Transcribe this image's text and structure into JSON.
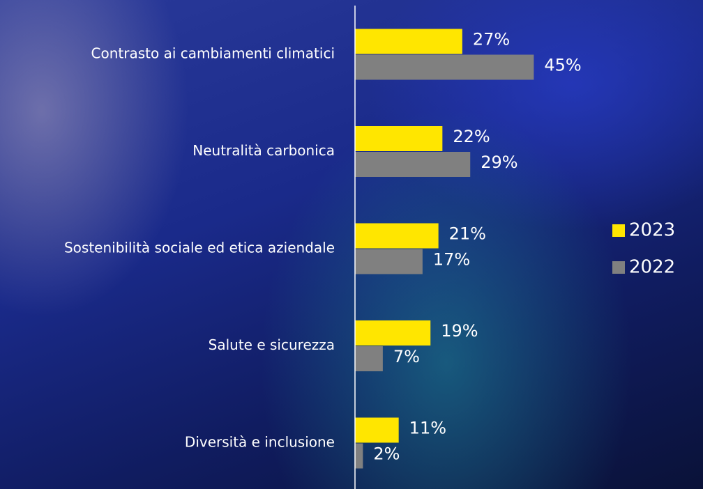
{
  "chart_data": {
    "type": "bar",
    "orientation": "horizontal",
    "categories": [
      "Contrasto ai cambiamenti climatici",
      "Neutralità carbonica",
      "Sostenibilità sociale ed etica aziendale",
      "Salute e sicurezza",
      "Diversità e inclusione"
    ],
    "series": [
      {
        "name": "2023",
        "color": "#ffe600",
        "values": [
          27,
          22,
          21,
          19,
          11
        ],
        "value_labels": [
          "27%",
          "22%",
          "21%",
          "19%",
          "11%"
        ]
      },
      {
        "name": "2022",
        "color": "#808080",
        "values": [
          45,
          29,
          17,
          7,
          2
        ],
        "value_labels": [
          "45%",
          "29%",
          "17%",
          "7%",
          "2%"
        ]
      }
    ],
    "xlim": [
      0,
      86
    ],
    "legend": "right"
  }
}
